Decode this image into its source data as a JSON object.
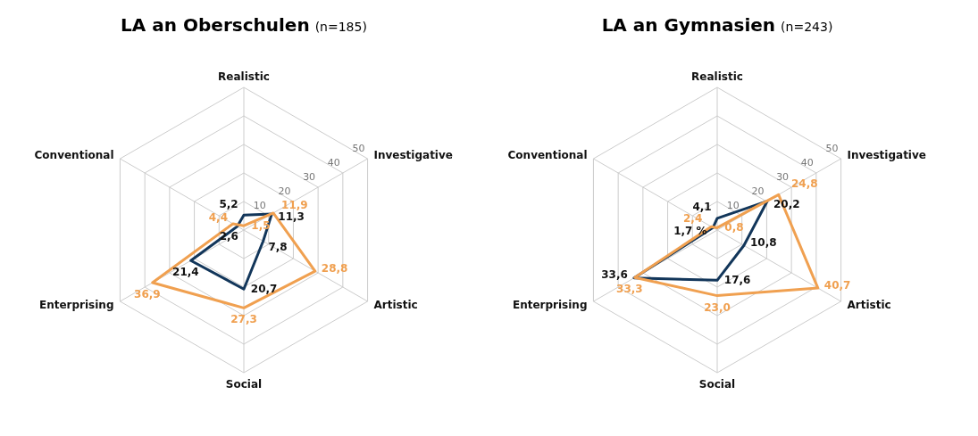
{
  "chart_data": [
    {
      "type": "radar",
      "title": "LA an Oberschulen",
      "subtitle": "(n=185)",
      "categories": [
        "Realistic",
        "Investigative",
        "Artistic",
        "Social",
        "Enterprising",
        "Conventional"
      ],
      "ylim": [
        0,
        50
      ],
      "yticks": [
        10,
        20,
        30,
        40,
        50
      ],
      "grid": true,
      "series": [
        {
          "color": "#12365a",
          "values": [
            5.2,
            11.3,
            7.8,
            20.7,
            21.4,
            2.6
          ],
          "value_labels": [
            "5,2",
            "11,3",
            "7,8",
            "20,7",
            "21,4",
            "2,6"
          ]
        },
        {
          "color": "#f0a050",
          "values": [
            1.5,
            11.9,
            28.8,
            27.3,
            36.9,
            4.4
          ],
          "value_labels": [
            "1,5",
            "11,9",
            "28,8",
            "27,3",
            "36,9",
            "4,4"
          ]
        }
      ]
    },
    {
      "type": "radar",
      "title": "LA an Gymnasien",
      "subtitle": "(n=243)",
      "categories": [
        "Realistic",
        "Investigative",
        "Artistic",
        "Social",
        "Enterprising",
        "Conventional"
      ],
      "ylim": [
        0,
        50
      ],
      "yticks": [
        10,
        20,
        30,
        40,
        50
      ],
      "grid": true,
      "series": [
        {
          "color": "#12365a",
          "values": [
            4.1,
            20.2,
            10.8,
            17.6,
            33.6,
            1.7
          ],
          "value_labels": [
            "4,1",
            "20,2",
            "10,8",
            "17,6",
            "33,6",
            "1,7 %"
          ]
        },
        {
          "color": "#f0a050",
          "values": [
            0.8,
            24.8,
            40.7,
            23.0,
            33.3,
            2.4
          ],
          "value_labels": [
            "0,8",
            "24,8",
            "40,7",
            "23,0",
            "33,3",
            "2,4"
          ]
        }
      ]
    }
  ]
}
